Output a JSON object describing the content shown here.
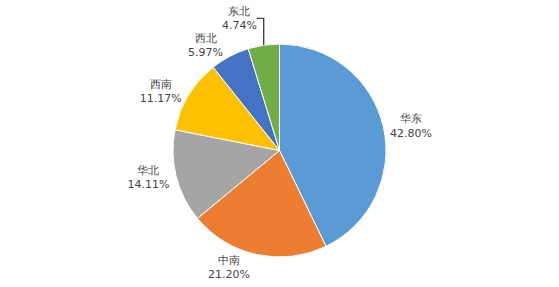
{
  "chart_data": {
    "type": "pie",
    "categories": [
      "华东",
      "中南",
      "华北",
      "西南",
      "西北",
      "东北"
    ],
    "values": [
      42.8,
      21.2,
      14.11,
      11.17,
      5.97,
      4.74
    ],
    "value_labels": [
      "42.80%",
      "21.20%",
      "14.11%",
      "11.17%",
      "5.97%",
      "4.74%"
    ],
    "colors": [
      "#5b9bd5",
      "#ed7d31",
      "#a5a5a5",
      "#ffc000",
      "#4472c4",
      "#70ad47"
    ],
    "data_labels": true,
    "legend": false
  }
}
